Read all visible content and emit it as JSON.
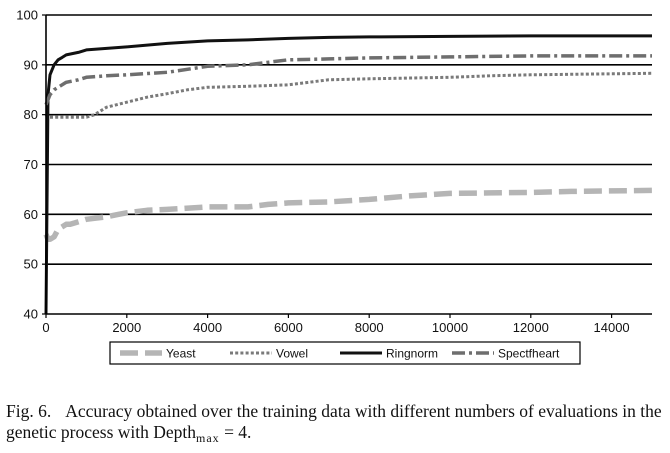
{
  "chart_data": {
    "type": "line",
    "xlim": [
      0,
      15000
    ],
    "ylim": [
      40,
      100
    ],
    "xticks": [
      0,
      2000,
      4000,
      6000,
      8000,
      10000,
      12000,
      14000
    ],
    "yticks": [
      40,
      50,
      60,
      70,
      80,
      90,
      100
    ],
    "grid": "horizontal",
    "legend_position": "bottom",
    "series": [
      {
        "name": "Yeast",
        "style": "long-dash",
        "color": "#b5b5b5",
        "x": [
          0,
          50,
          100,
          200,
          300,
          400,
          500,
          600,
          1000,
          1200,
          1500,
          1800,
          2000,
          2500,
          3000,
          4000,
          5000,
          5500,
          6000,
          7000,
          8000,
          9000,
          10000,
          11000,
          12000,
          13000,
          14000,
          15000
        ],
        "y": [
          56,
          55,
          55,
          55.5,
          57,
          57.5,
          58,
          58,
          59,
          59.2,
          59.5,
          60,
          60.3,
          60.8,
          61,
          61.5,
          61.5,
          62,
          62.3,
          62.5,
          63,
          63.7,
          64.2,
          64.3,
          64.4,
          64.6,
          64.7,
          64.8
        ]
      },
      {
        "name": "Vowel",
        "style": "dotted",
        "color": "#7a7a7a",
        "x": [
          0,
          50,
          100,
          500,
          1000,
          1200,
          1500,
          2000,
          2500,
          3000,
          3500,
          4000,
          5000,
          6000,
          7000,
          8000,
          10000,
          11000,
          12000,
          13000,
          14000,
          15000
        ],
        "y": [
          80,
          79.5,
          79.5,
          79.5,
          79.5,
          80,
          81.5,
          82.5,
          83.5,
          84.2,
          85,
          85.5,
          85.7,
          86,
          87,
          87.2,
          87.5,
          87.8,
          88,
          88.1,
          88.2,
          88.3
        ]
      },
      {
        "name": "Ringnorm",
        "style": "solid",
        "color": "#111111",
        "x": [
          0,
          50,
          100,
          200,
          300,
          400,
          500,
          800,
          1000,
          1500,
          2000,
          3000,
          4000,
          5000,
          6000,
          7000,
          8000,
          10000,
          12000,
          15000
        ],
        "y": [
          40,
          84,
          88,
          90,
          91,
          91.5,
          92,
          92.5,
          93,
          93.3,
          93.6,
          94.3,
          94.8,
          95,
          95.3,
          95.5,
          95.6,
          95.7,
          95.8,
          95.8
        ]
      },
      {
        "name": "Spectfheart",
        "style": "dash-dot",
        "color": "#6e6e6e",
        "x": [
          0,
          50,
          100,
          200,
          300,
          500,
          800,
          1000,
          1500,
          2000,
          3000,
          4000,
          5000,
          5500,
          6000,
          7000,
          8000,
          10000,
          12000,
          15000
        ],
        "y": [
          82,
          83,
          84,
          85,
          85.5,
          86.5,
          87,
          87.5,
          87.8,
          88,
          88.5,
          89.7,
          90,
          90.5,
          91,
          91.2,
          91.4,
          91.6,
          91.8,
          91.8
        ]
      }
    ]
  },
  "caption": {
    "label": "Fig. 6.",
    "text_before": "Accuracy obtained over the training data with different numbers of evaluations in the genetic process with Depth",
    "subscript": "max",
    "text_after": " = 4."
  }
}
